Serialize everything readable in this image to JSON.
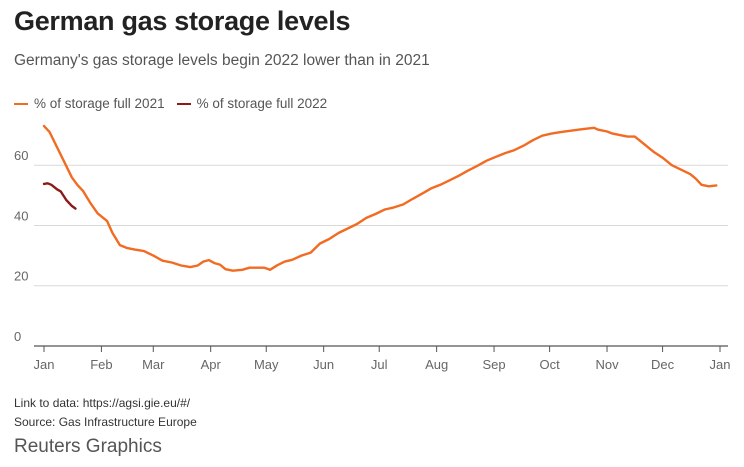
{
  "header": {
    "title": "German gas storage levels",
    "subtitle": "Germany's gas storage levels begin 2022 lower than in 2021"
  },
  "footer": {
    "link": "Link to data: https://agsi.gie.eu/#/",
    "source": "Source: Gas Infrastructure Europe",
    "brand": "Reuters Graphics"
  },
  "chart_data": {
    "type": "line",
    "title": "German gas storage levels",
    "subtitle": "Germany's gas storage levels begin 2022 lower than in 2021",
    "xlabel": "",
    "ylabel": "",
    "x_unit": "day of year",
    "categories": [
      "Jan",
      "Feb",
      "Mar",
      "Apr",
      "May",
      "Jun",
      "Jul",
      "Aug",
      "Sep",
      "Oct",
      "Nov",
      "Dec",
      "Jan"
    ],
    "month_start_days": [
      1,
      32,
      60,
      91,
      121,
      152,
      182,
      213,
      244,
      274,
      305,
      335,
      366
    ],
    "ylim": [
      0,
      75
    ],
    "yticks": [
      0,
      20,
      40,
      60
    ],
    "grid": true,
    "legend_position": "top-left",
    "series": [
      {
        "name": "% of storage full 2021",
        "color": "#f26b22",
        "points": [
          [
            1,
            73
          ],
          [
            4,
            71
          ],
          [
            8,
            66
          ],
          [
            12,
            61
          ],
          [
            16,
            56
          ],
          [
            19,
            53.5
          ],
          [
            22,
            51.5
          ],
          [
            26,
            47.5
          ],
          [
            30,
            44
          ],
          [
            35,
            41.5
          ],
          [
            38,
            37.5
          ],
          [
            42,
            33.5
          ],
          [
            46,
            32.5
          ],
          [
            50,
            32
          ],
          [
            55,
            31.5
          ],
          [
            60,
            30
          ],
          [
            65,
            28.3
          ],
          [
            70,
            27.7
          ],
          [
            75,
            26.7
          ],
          [
            80,
            26.2
          ],
          [
            84,
            26.7
          ],
          [
            87,
            28
          ],
          [
            90,
            28.5
          ],
          [
            93,
            27.5
          ],
          [
            96,
            27
          ],
          [
            99,
            25.5
          ],
          [
            103,
            25
          ],
          [
            108,
            25.3
          ],
          [
            112,
            26
          ],
          [
            116,
            26
          ],
          [
            120,
            26
          ],
          [
            123,
            25.3
          ],
          [
            127,
            26.8
          ],
          [
            131,
            28
          ],
          [
            135,
            28.6
          ],
          [
            140,
            30
          ],
          [
            145,
            31
          ],
          [
            150,
            34
          ],
          [
            155,
            35.5
          ],
          [
            160,
            37.5
          ],
          [
            165,
            39
          ],
          [
            170,
            40.5
          ],
          [
            175,
            42.5
          ],
          [
            180,
            43.8
          ],
          [
            185,
            45.3
          ],
          [
            190,
            46
          ],
          [
            195,
            47
          ],
          [
            200,
            48.8
          ],
          [
            205,
            50.5
          ],
          [
            210,
            52.3
          ],
          [
            215,
            53.5
          ],
          [
            220,
            55
          ],
          [
            225,
            56.5
          ],
          [
            230,
            58.2
          ],
          [
            235,
            59.8
          ],
          [
            240,
            61.5
          ],
          [
            245,
            62.8
          ],
          [
            250,
            64
          ],
          [
            255,
            65
          ],
          [
            260,
            66.5
          ],
          [
            265,
            68.3
          ],
          [
            270,
            69.8
          ],
          [
            275,
            70.5
          ],
          [
            280,
            71
          ],
          [
            285,
            71.4
          ],
          [
            290,
            71.8
          ],
          [
            295,
            72.2
          ],
          [
            298,
            72.4
          ],
          [
            300,
            71.8
          ],
          [
            305,
            71.2
          ],
          [
            308,
            70.5
          ],
          [
            312,
            70
          ],
          [
            316,
            69.5
          ],
          [
            320,
            69.5
          ],
          [
            325,
            67
          ],
          [
            330,
            64.5
          ],
          [
            335,
            62.5
          ],
          [
            340,
            60
          ],
          [
            345,
            58.5
          ],
          [
            350,
            57
          ],
          [
            353,
            55.5
          ],
          [
            356,
            53.5
          ],
          [
            360,
            53
          ],
          [
            364,
            53.3
          ]
        ]
      },
      {
        "name": "% of storage full 2022",
        "color": "#8b1a1a",
        "points": [
          [
            1,
            53.8
          ],
          [
            3,
            54
          ],
          [
            5,
            53.5
          ],
          [
            8,
            52
          ],
          [
            10,
            51.3
          ],
          [
            13,
            48.5
          ],
          [
            16,
            46.5
          ],
          [
            18,
            45.6
          ]
        ]
      }
    ]
  }
}
